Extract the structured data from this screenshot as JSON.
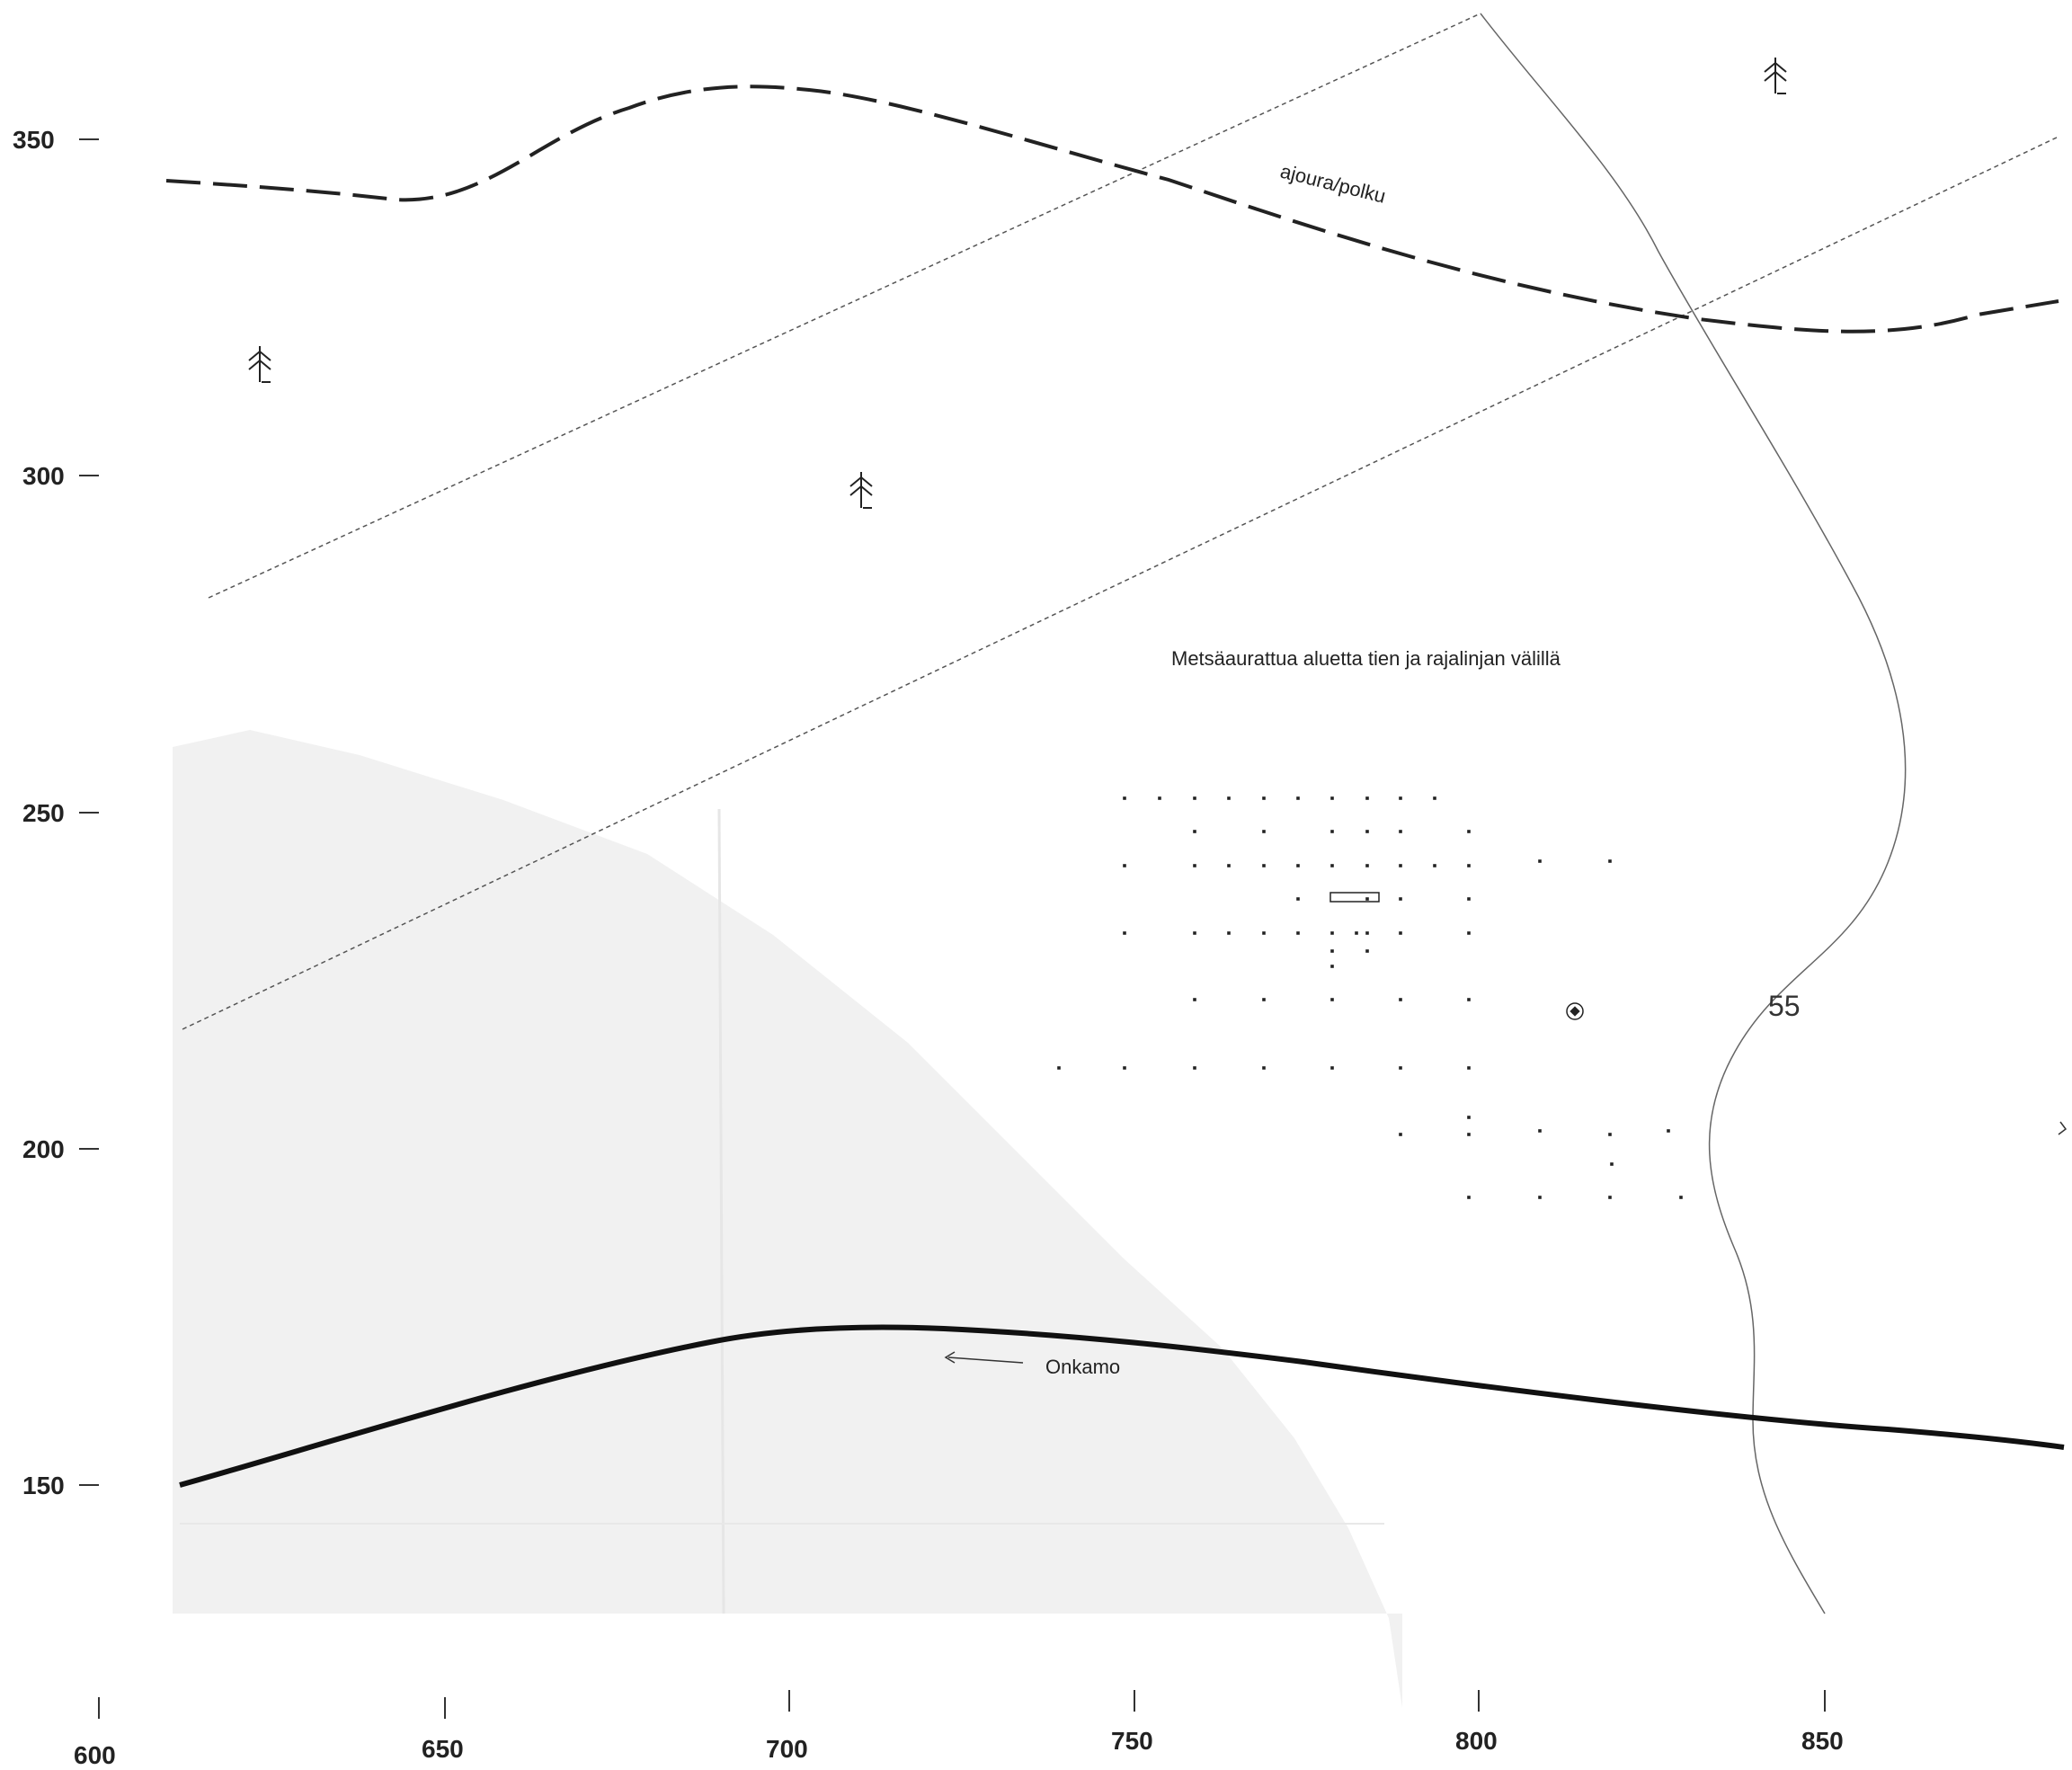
{
  "map": {
    "x_ticks": [
      "600",
      "650",
      "700",
      "750",
      "800",
      "850"
    ],
    "y_ticks": [
      "350",
      "300",
      "250",
      "200",
      "150"
    ],
    "labels": {
      "path": "ajoura/polku",
      "area_note": "Metsäaurattua aluetta tien ja rajalinjan välillä",
      "onkamo": "Onkamo",
      "contour": "55"
    },
    "colors": {
      "shaded_area": "#f1f1f1",
      "line": "#222222"
    },
    "icons": [
      "tree-icon",
      "tree-icon",
      "tree-icon",
      "survey-point-icon",
      "onkamo-arrow-icon"
    ]
  }
}
